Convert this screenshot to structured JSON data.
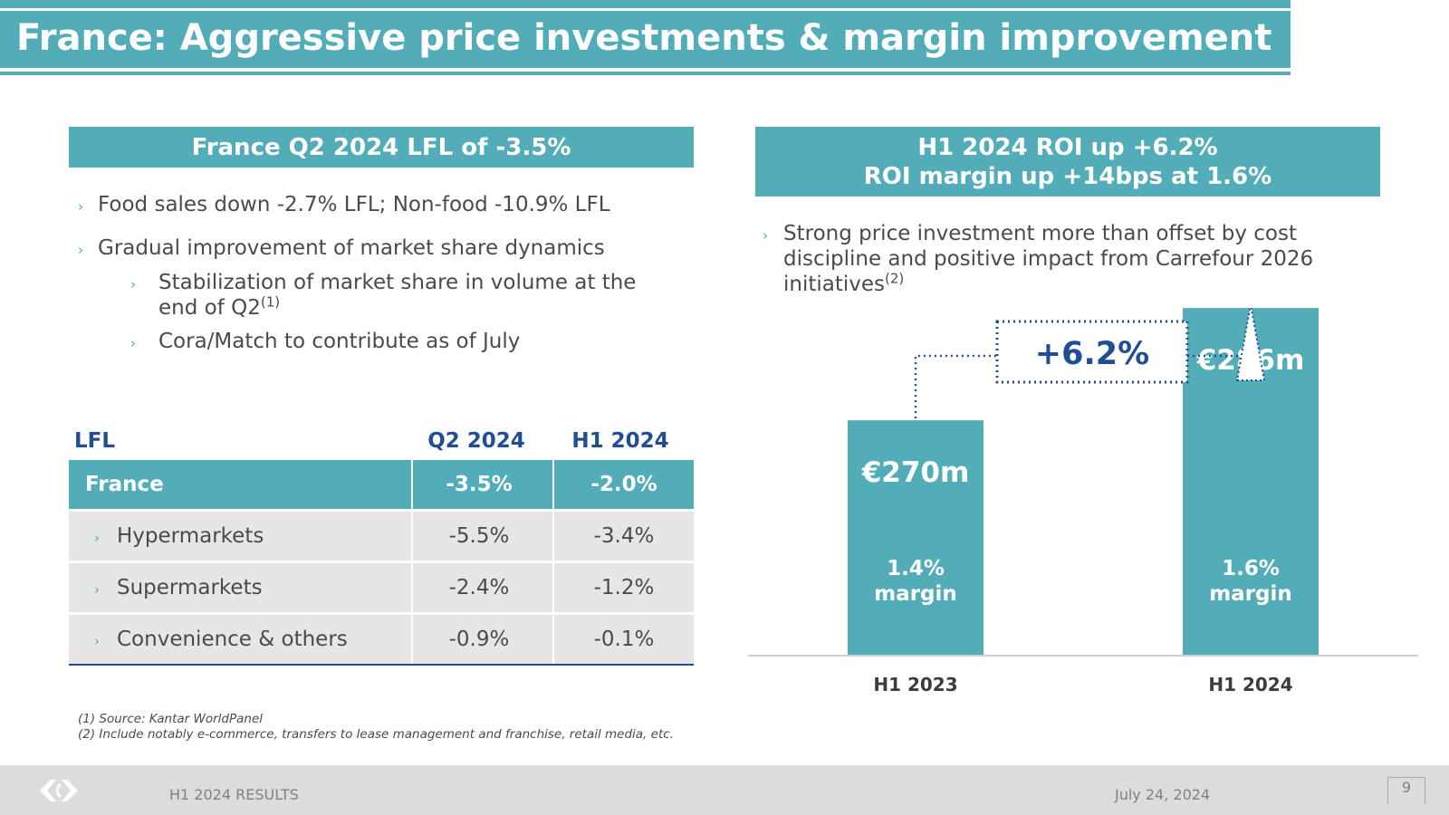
{
  "title": "France: Aggressive price investments & margin improvement",
  "left_panel": {
    "header": "France Q2 2024 LFL of -3.5%",
    "bullets": [
      {
        "text": "Food sales down -2.7% LFL; Non-food -10.9% LFL",
        "level": 1
      },
      {
        "text": "Gradual improvement of market share dynamics",
        "level": 1
      },
      {
        "text": "Stabilization of market share in volume at the",
        "text2": "end of Q2",
        "sup": "(1)",
        "level": 2
      },
      {
        "text": "Cora/Match to contribute as of July",
        "level": 2
      }
    ]
  },
  "table": {
    "headers": [
      "LFL",
      "Q2 2024",
      "H1 2024"
    ],
    "rows": [
      {
        "label": "France",
        "q2": "-3.5%",
        "h1": "-2.0%",
        "highlight": true
      },
      {
        "label": "Hypermarkets",
        "q2": "-5.5%",
        "h1": "-3.4%",
        "highlight": false
      },
      {
        "label": "Supermarkets",
        "q2": "-2.4%",
        "h1": "-1.2%",
        "highlight": false
      },
      {
        "label": "Convenience & others",
        "q2": "-0.9%",
        "h1": "-0.1%",
        "highlight": false
      }
    ]
  },
  "right_panel": {
    "header_line1": "H1 2024 ROI up +6.2%",
    "header_line2": "ROI margin up +14bps at 1.6%",
    "bullet_text": "Strong price investment more than offset by cost discipline and positive impact from Carrefour 2026 initiatives",
    "bullet_sup": "(2)"
  },
  "chart_data": {
    "type": "bar",
    "categories": [
      "H1 2023",
      "H1 2024"
    ],
    "values": [
      270,
      286
    ],
    "value_labels": [
      "€270m",
      "€286m"
    ],
    "margin_labels": [
      [
        "1.4%",
        "margin"
      ],
      [
        "1.6%",
        "margin"
      ]
    ],
    "growth_label": "+6.2%",
    "ylim": [
      0,
      300
    ],
    "colors": {
      "bar": "#52adb8",
      "accent": "#1f4e96",
      "bar_text": "#ffffff"
    }
  },
  "footnotes": [
    "(1)  Source: Kantar WorldPanel",
    "(2)  Include notably e-commerce, transfers to lease management and franchise, retail media, etc."
  ],
  "footer": {
    "left": "H1 2024 RESULTS",
    "date": "July 24, 2024",
    "page": "9"
  },
  "colors": {
    "teal": "#52adb8",
    "navy": "#1f4e96",
    "row_bg": "#e6e6e6"
  }
}
